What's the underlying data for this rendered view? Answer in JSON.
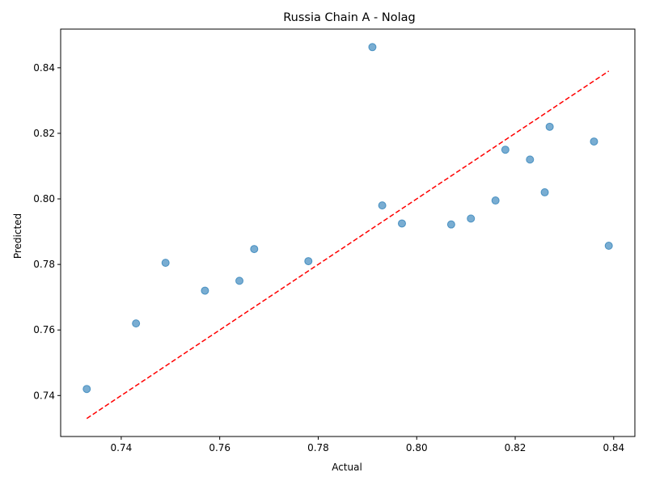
{
  "chart_data": {
    "type": "scatter",
    "title": "Russia Chain A - Nolag",
    "xlabel": "Actual",
    "ylabel": "Predicted",
    "xlim": [
      0.7277,
      0.8443
    ],
    "ylim": [
      0.7275,
      0.8518
    ],
    "xticks": [
      0.74,
      0.76,
      0.78,
      0.8,
      0.82,
      0.84
    ],
    "yticks": [
      0.74,
      0.76,
      0.78,
      0.8,
      0.82,
      0.84
    ],
    "xtick_labels": [
      "0.74",
      "0.76",
      "0.78",
      "0.80",
      "0.82",
      "0.84"
    ],
    "ytick_labels": [
      "0.74",
      "0.76",
      "0.78",
      "0.80",
      "0.82",
      "0.84"
    ],
    "grid": false,
    "series": [
      {
        "color": "#1f77b4",
        "alpha": 0.6,
        "points": [
          {
            "x": 0.733,
            "y": 0.742
          },
          {
            "x": 0.743,
            "y": 0.762
          },
          {
            "x": 0.749,
            "y": 0.7805
          },
          {
            "x": 0.757,
            "y": 0.772
          },
          {
            "x": 0.764,
            "y": 0.775
          },
          {
            "x": 0.767,
            "y": 0.7847
          },
          {
            "x": 0.778,
            "y": 0.781
          },
          {
            "x": 0.791,
            "y": 0.8463
          },
          {
            "x": 0.793,
            "y": 0.798
          },
          {
            "x": 0.797,
            "y": 0.7925
          },
          {
            "x": 0.807,
            "y": 0.7922
          },
          {
            "x": 0.811,
            "y": 0.794
          },
          {
            "x": 0.816,
            "y": 0.7995
          },
          {
            "x": 0.818,
            "y": 0.815
          },
          {
            "x": 0.823,
            "y": 0.812
          },
          {
            "x": 0.826,
            "y": 0.802
          },
          {
            "x": 0.827,
            "y": 0.822
          },
          {
            "x": 0.836,
            "y": 0.8175
          },
          {
            "x": 0.839,
            "y": 0.7857
          }
        ]
      }
    ],
    "reference_line": {
      "style": "dashed",
      "color": "#ff0000",
      "from": [
        0.733,
        0.733
      ],
      "to": [
        0.839,
        0.839
      ]
    }
  }
}
